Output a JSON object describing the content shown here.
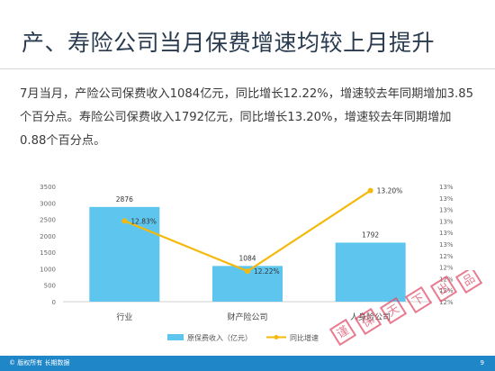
{
  "slide": {
    "title": "产、寿险公司当月保费增速均较上月提升",
    "body": "7月当月，产险公司保费收入1084亿元，同比增长12.22%，增速较去年同期增加3.85个百分点。寿险公司保费收入1792亿元，同比增长13.20%，增速较去年同期增加0.88个百分点。",
    "watermark_chars": [
      "谨",
      "保",
      "天",
      "下",
      "出",
      "品"
    ],
    "footer_text": "© 版权所有 长期数据",
    "page_number": "9"
  },
  "colors": {
    "bar": "#5ec6ee",
    "line": "#f5b90b",
    "title": "#2a3b4f",
    "footer": "#1f86c8",
    "stamp": "#e1506a"
  },
  "chart_data": {
    "type": "bar",
    "categories": [
      "行业",
      "财产险公司",
      "人身险公司"
    ],
    "series": [
      {
        "name": "原保费收入（亿元）",
        "type": "bar",
        "axis": "left",
        "values": [
          2876,
          1084,
          1792
        ],
        "labels": [
          "2876",
          "1084",
          "1792"
        ]
      },
      {
        "name": "同比增速",
        "type": "line",
        "axis": "right",
        "values": [
          12.83,
          12.22,
          13.2
        ],
        "labels": [
          "12.83%",
          "12.22%",
          "13.20%"
        ]
      }
    ],
    "y_left": {
      "min": 0,
      "max": 3500,
      "ticks": [
        "0",
        "500",
        "1000",
        "1500",
        "2000",
        "2500",
        "3000",
        "3500"
      ]
    },
    "y_right": {
      "min": 11.85,
      "max": 13.25,
      "ticks": [
        "12%",
        "12%",
        "12%",
        "12%",
        "12%",
        "13%",
        "13%",
        "13%",
        "13%",
        "13%",
        "13%"
      ]
    },
    "legend_position": "bottom",
    "grid": false
  }
}
